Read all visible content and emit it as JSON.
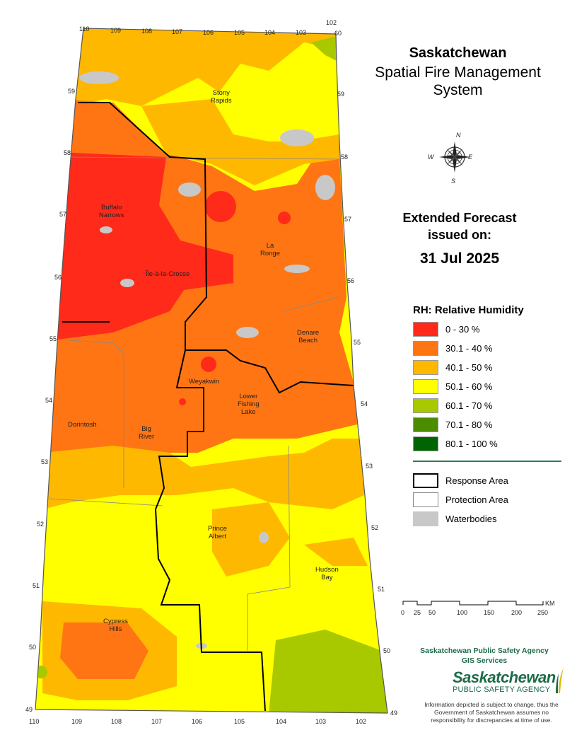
{
  "title": {
    "line1": "Saskatchewan",
    "line2": "Spatial Fire Management",
    "line3": "System"
  },
  "forecast": {
    "heading_line1": "Extended Forecast",
    "heading_line2": "issued on:",
    "date": "31 Jul 2025"
  },
  "legend": {
    "title": "RH: Relative Humidity",
    "classes": [
      {
        "label": "0 - 30 %",
        "color": "#ff2a1a"
      },
      {
        "label": "30.1 - 40 %",
        "color": "#ff7514"
      },
      {
        "label": "40.1 - 50 %",
        "color": "#ffb800"
      },
      {
        "label": "50.1 - 60 %",
        "color": "#ffff00"
      },
      {
        "label": "60.1 - 70 %",
        "color": "#a8c800"
      },
      {
        "label": "70.1 - 80 %",
        "color": "#4c8c00"
      },
      {
        "label": "80.1 - 100 %",
        "color": "#006400"
      }
    ],
    "boundaries": [
      {
        "label": "Response Area"
      },
      {
        "label": "Protection Area"
      },
      {
        "label": "Waterbodies",
        "color": "#c8c8c8"
      }
    ]
  },
  "scale_bar": {
    "ticks": [
      "0",
      "25",
      "50",
      "100",
      "150",
      "200",
      "250"
    ],
    "unit": "KM"
  },
  "agency": {
    "line1": "Saskatchewan Public Safety Agency",
    "line2": "GIS  Services",
    "logo_line1": "Saskatchewan",
    "logo_line2": "PUBLIC SAFETY AGENCY"
  },
  "disclaimer": "Information depicted is subject to change, thus the Government of Saskatchewan assumes no responsibility for discrepancies at time of use.",
  "compass": {
    "n": "N",
    "s": "S",
    "e": "E",
    "w": "W"
  },
  "longitudes_top": [
    "110",
    "109",
    "108",
    "107",
    "106",
    "105",
    "104",
    "103",
    "102"
  ],
  "longitudes_bottom": [
    "110",
    "109",
    "108",
    "107",
    "106",
    "105",
    "104",
    "103",
    "102"
  ],
  "latitude_60": "60",
  "latitudes_left": [
    "59",
    "58",
    "57",
    "56",
    "55",
    "54",
    "53",
    "52",
    "51",
    "50",
    "49"
  ],
  "latitudes_right": [
    "59",
    "58",
    "57",
    "56",
    "55",
    "54",
    "53",
    "52",
    "51",
    "50",
    "49"
  ],
  "places": [
    {
      "name": "Stony\nRapids"
    },
    {
      "name": "Buffalo\nNarrows"
    },
    {
      "name": "La\nRonge"
    },
    {
      "name": "Île-à-la-Crosse"
    },
    {
      "name": "Denare\nBeach"
    },
    {
      "name": "Weyakwin"
    },
    {
      "name": "Lower\nFishing\nLake"
    },
    {
      "name": "Dorintosh"
    },
    {
      "name": "Big\nRiver"
    },
    {
      "name": "Prince\nAlbert"
    },
    {
      "name": "Hudson\nBay"
    },
    {
      "name": "Cypress\nHills"
    }
  ]
}
